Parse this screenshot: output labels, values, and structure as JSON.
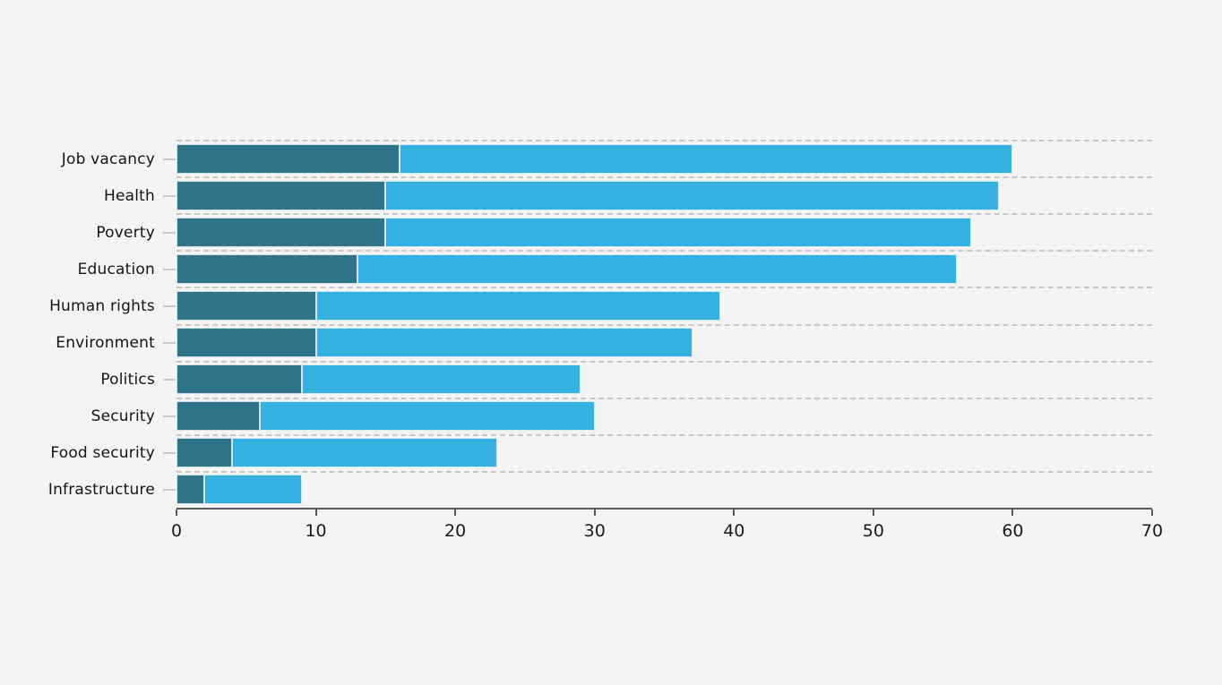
{
  "chart_data": {
    "type": "bar",
    "orientation": "horizontal",
    "stacked": true,
    "title": "",
    "xlabel": "",
    "ylabel": "",
    "categories": [
      "Job vacancy",
      "Health",
      "Poverty",
      "Education",
      "Human rights",
      "Environment",
      "Politics",
      "Security",
      "Food security",
      "Infrastructure"
    ],
    "series": [
      {
        "name": "segment-dark",
        "color": "#30748a",
        "values": [
          16,
          15,
          15,
          13,
          10,
          10,
          9,
          6,
          4,
          2
        ]
      },
      {
        "name": "segment-light",
        "color": "#34b1de",
        "values": [
          44,
          44,
          42,
          43,
          29,
          27,
          20,
          24,
          19,
          7
        ]
      }
    ],
    "totals": [
      60,
      59,
      57,
      56,
      39,
      37,
      29,
      30,
      23,
      9
    ],
    "xlim": [
      0,
      70
    ],
    "x_ticks": [
      "0",
      "10",
      "20",
      "30",
      "40",
      "50",
      "60",
      "70"
    ],
    "grid": "horizontal dashed row separators",
    "legend_position": "none"
  },
  "colors": {
    "background": "#f4f4f5",
    "bar_dark": "#30748a",
    "bar_light": "#34b1de",
    "gridline": "#c8c8c8",
    "axis": "#5a5a5a",
    "text": "#141414"
  }
}
